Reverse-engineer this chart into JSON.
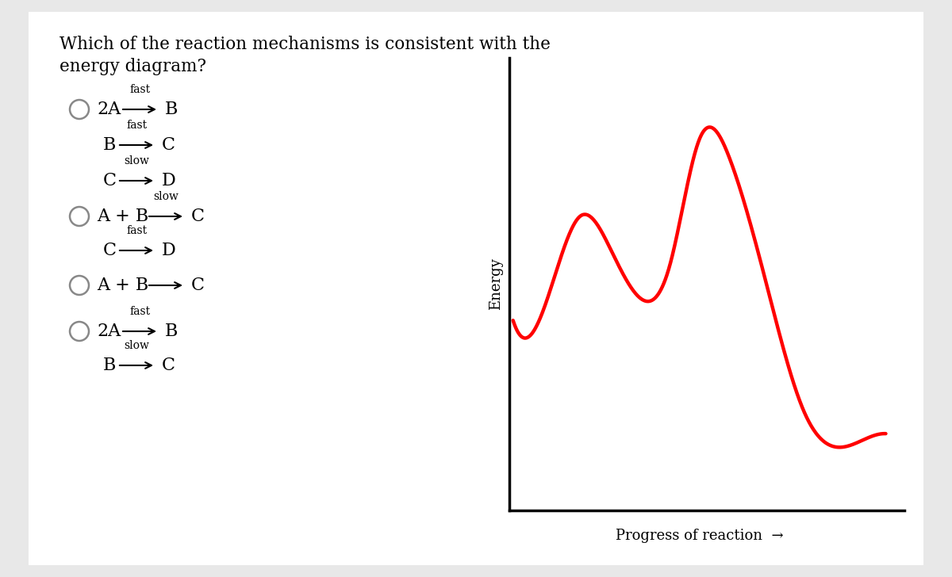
{
  "bg_color": "#e8e8e8",
  "panel_color": "#ffffff",
  "question_line1": "Which of the reaction mechanisms is consistent with the",
  "question_line2": "energy diagram?",
  "curve_color": "#ff0000",
  "curve_linewidth": 3.2,
  "xlabel": "Progress of reaction",
  "ylabel": "Energy",
  "axis_color": "#000000",
  "options": [
    {
      "lines": [
        {
          "prefix": "2A",
          "label": "fast",
          "suffix": "B",
          "has_circle": true,
          "indented": false
        },
        {
          "prefix": "B",
          "label": "fast",
          "suffix": "C",
          "has_circle": false,
          "indented": true
        },
        {
          "prefix": "C",
          "label": "slow",
          "suffix": "D",
          "has_circle": false,
          "indented": true
        }
      ]
    },
    {
      "lines": [
        {
          "prefix": "A + B",
          "label": "slow",
          "suffix": "C",
          "has_circle": true,
          "indented": false
        },
        {
          "prefix": "C",
          "label": "fast",
          "suffix": "D",
          "has_circle": false,
          "indented": true
        }
      ]
    },
    {
      "lines": [
        {
          "prefix": "A + B",
          "label": "",
          "suffix": "C",
          "has_circle": true,
          "indented": false
        }
      ]
    },
    {
      "lines": [
        {
          "prefix": "2A",
          "label": "fast",
          "suffix": "B",
          "has_circle": true,
          "indented": false
        },
        {
          "prefix": "B",
          "label": "slow",
          "suffix": "C",
          "has_circle": false,
          "indented": true
        }
      ]
    }
  ]
}
